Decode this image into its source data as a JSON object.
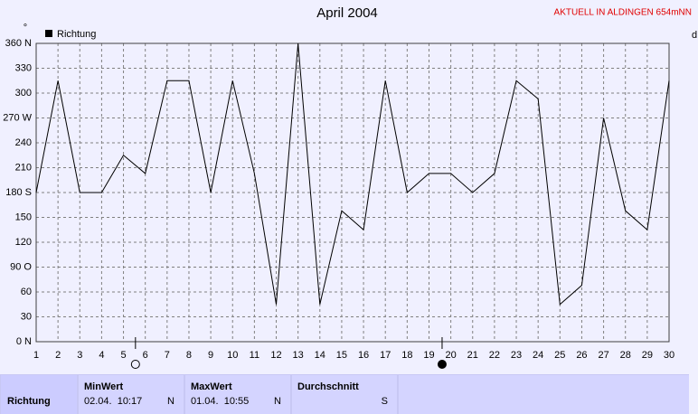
{
  "chart_data": {
    "type": "line",
    "title": "April 2004",
    "annotation": "AKTUELL IN ALDINGEN 654mNN",
    "y_unit": "°",
    "right_label": "d",
    "x": [
      1,
      2,
      3,
      4,
      5,
      6,
      7,
      8,
      9,
      10,
      11,
      12,
      13,
      14,
      15,
      16,
      17,
      18,
      19,
      20,
      21,
      22,
      23,
      24,
      25,
      26,
      27,
      28,
      29,
      30
    ],
    "xlim": [
      1,
      30
    ],
    "series": [
      {
        "name": "Richtung",
        "color": "#000000",
        "values": [
          180,
          315,
          180,
          180,
          225,
          203,
          315,
          315,
          180,
          315,
          203,
          45,
          360,
          45,
          158,
          135,
          315,
          180,
          203,
          203,
          180,
          203,
          315,
          293,
          45,
          68,
          270,
          158,
          135,
          315
        ]
      }
    ],
    "ylim": [
      0,
      360
    ],
    "yticks": [
      {
        "value": 0,
        "label": "0 N"
      },
      30,
      60,
      {
        "value": 90,
        "label": "90 O"
      },
      120,
      150,
      {
        "value": 180,
        "label": "180 S"
      },
      210,
      240,
      {
        "value": 270,
        "label": "270 W"
      },
      300,
      330,
      {
        "value": 360,
        "label": "360 N"
      }
    ],
    "grid": true,
    "moon_phases": [
      {
        "x": 5.55,
        "kind": "full"
      },
      {
        "x": 19.6,
        "kind": "new"
      }
    ]
  },
  "table": {
    "row_label": "Richtung",
    "columns": [
      {
        "header": "MinWert",
        "time": "02.04.  10:17",
        "dir": "N"
      },
      {
        "header": "MaxWert",
        "time": "01.04.  10:55",
        "dir": "N"
      },
      {
        "header": "Durchschnitt",
        "dir": "S"
      }
    ]
  }
}
